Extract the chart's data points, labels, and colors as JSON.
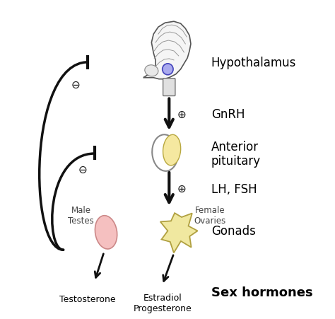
{
  "bg_color": "#ffffff",
  "labels": {
    "hypothalamus": "Hypothalamus",
    "gnrh": "GnRH",
    "anterior_pituitary": "Anterior\npituitary",
    "lh_fsh": "LH, FSH",
    "gonads": "Gonads",
    "sex_hormones": "Sex hormones",
    "male_testes": "Male\nTestes",
    "female_ovaries": "Female\nOvaries",
    "testosterone": "Testosterone",
    "estradiol": "Estradiol\nProgesterone"
  },
  "arrow_color": "#111111",
  "inhibit_color": "#111111"
}
